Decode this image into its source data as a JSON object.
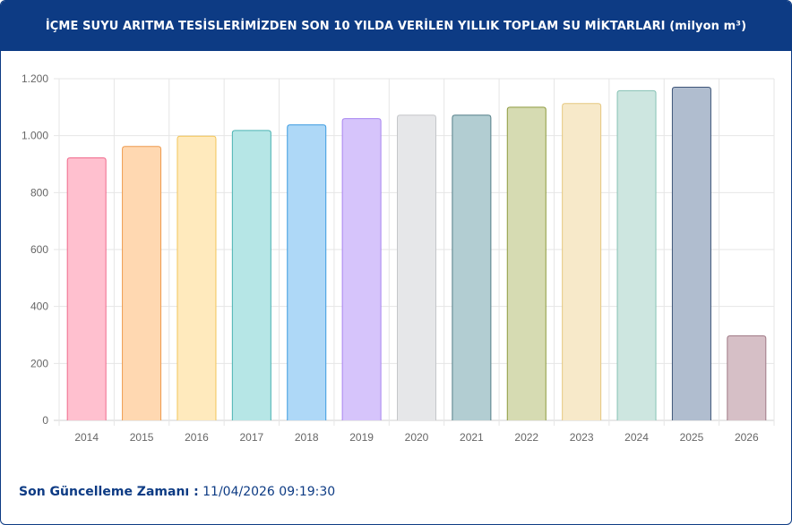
{
  "header": {
    "title": "İÇME SUYU ARITMA TESİSLERİMİZDEN SON 10 YILDA VERİLEN YILLIK TOPLAM SU MİKTARLARI (milyon m³)"
  },
  "footer": {
    "label": "Son Güncelleme Zamanı :",
    "timestamp": "11/04/2026 09:19:30"
  },
  "chart_data": {
    "type": "bar",
    "title": "İÇME SUYU ARITMA TESİSLERİMİZDEN SON 10 YILDA VERİLEN YILLIK TOPLAM SU MİKTARLARI (milyon m³)",
    "xlabel": "",
    "ylabel": "",
    "categories": [
      "2014",
      "2015",
      "2016",
      "2017",
      "2018",
      "2019",
      "2020",
      "2021",
      "2022",
      "2023",
      "2024",
      "2025",
      "2026"
    ],
    "values": [
      922,
      962,
      998,
      1018,
      1038,
      1060,
      1072,
      1072,
      1100,
      1113,
      1158,
      1170,
      297
    ],
    "ylim": [
      0,
      1200
    ],
    "yticks": [
      0,
      200,
      400,
      600,
      800,
      1000,
      1200
    ],
    "ytick_labels": [
      "0",
      "200",
      "400",
      "600",
      "800",
      "1.000",
      "1.200"
    ],
    "grid": true,
    "bar_fill_colors": [
      "#ffc0cf",
      "#ffd8b1",
      "#ffeabd",
      "#b6e6e6",
      "#aed8f7",
      "#d6c4fb",
      "#e6e7e9",
      "#b2cdd2",
      "#d6dbb2",
      "#f7e9c9",
      "#cde6e0",
      "#b0bdcf",
      "#d6bfc6"
    ],
    "bar_stroke_colors": [
      "#f06a8c",
      "#ee9a4d",
      "#f2c55a",
      "#4ab3b3",
      "#3b9be0",
      "#a884f0",
      "#c4c6c9",
      "#557f88",
      "#8d9a3d",
      "#e6c77f",
      "#86c2b4",
      "#3d5578",
      "#a07a86"
    ]
  }
}
